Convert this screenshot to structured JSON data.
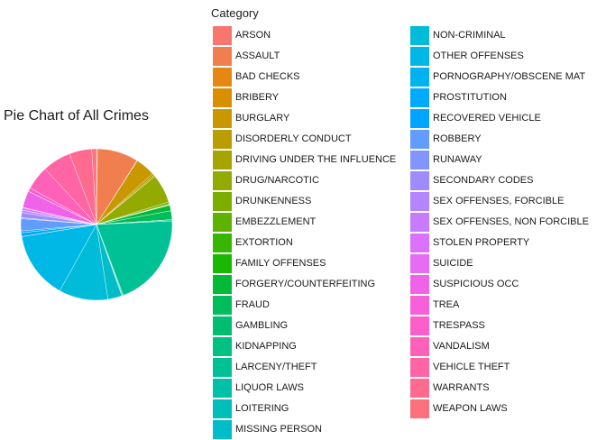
{
  "chart_data": {
    "type": "pie",
    "title": "Pie Chart of All Crimes",
    "legend_title": "Category",
    "legend_position": "right",
    "categories": [
      "ARSON",
      "ASSAULT",
      "BAD CHECKS",
      "BRIBERY",
      "BURGLARY",
      "DISORDERLY CONDUCT",
      "DRIVING UNDER THE INFLUENCE",
      "DRUG/NARCOTIC",
      "DRUNKENNESS",
      "EMBEZZLEMENT",
      "EXTORTION",
      "FAMILY OFFENSES",
      "FORGERY/COUNTERFEITING",
      "FRAUD",
      "GAMBLING",
      "KIDNAPPING",
      "LARCENY/THEFT",
      "LIQUOR LAWS",
      "LOITERING",
      "MISSING PERSON",
      "NON-CRIMINAL",
      "OTHER OFFENSES",
      "PORNOGRAPHY/OBSCENE MAT",
      "PROSTITUTION",
      "RECOVERED VEHICLE",
      "ROBBERY",
      "RUNAWAY",
      "SECONDARY CODES",
      "SEX OFFENSES, FORCIBLE",
      "SEX OFFENSES, NON FORCIBLE",
      "STOLEN PROPERTY",
      "SUICIDE",
      "SUSPICIOUS OCC",
      "TREA",
      "TRESPASS",
      "VANDALISM",
      "VEHICLE THEFT",
      "WARRANTS",
      "WEAPON LAWS"
    ],
    "values": [
      0.2,
      8.8,
      0.05,
      0.04,
      4.2,
      0.5,
      0.3,
      6.1,
      0.5,
      0.15,
      0.03,
      0.05,
      1.2,
      1.9,
      0.02,
      0.25,
      20.0,
      0.2,
      0.15,
      3.0,
      10.5,
      14.4,
      0.01,
      0.8,
      0.4,
      2.6,
      0.2,
      1.1,
      0.5,
      0.02,
      0.5,
      0.06,
      3.6,
      0.01,
      0.8,
      5.1,
      6.1,
      4.8,
      1.0
    ],
    "colors": [
      "#F8766D",
      "#F17E4F",
      "#E68613",
      "#D89000",
      "#C99800",
      "#BA9E00",
      "#A7A300",
      "#93AA00",
      "#7CAE00",
      "#5EB300",
      "#39B600",
      "#1AB800",
      "#00BA38",
      "#00BD5C",
      "#00BE6F",
      "#00C082",
      "#00C196",
      "#00C0A8",
      "#00BEBA",
      "#00BDC9",
      "#00BCD8",
      "#00B8E5",
      "#00B3F0",
      "#00ABFD",
      "#00A5FF",
      "#619CFF",
      "#8294FF",
      "#9E8CFF",
      "#B385FF",
      "#C77CFF",
      "#DB72FB",
      "#E76BF3",
      "#F063E8",
      "#F760D9",
      "#FC5FC9",
      "#FF61B9",
      "#FF64A4",
      "#FF6A8F",
      "#FC717B"
    ]
  }
}
